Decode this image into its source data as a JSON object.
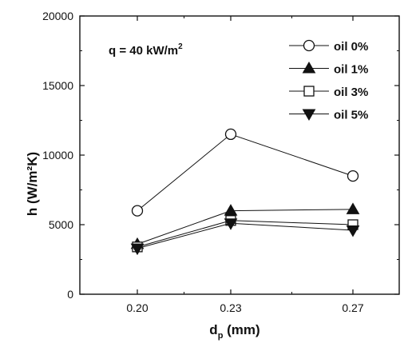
{
  "chart_data": {
    "type": "line",
    "x": [
      "0.20",
      "0.23",
      "0.27"
    ],
    "xlabel": "d",
    "xlabel_sub": "p",
    "xlabel_units": " (mm)",
    "ylabel": "h (W/m²K)",
    "ylim": [
      0,
      20000
    ],
    "yticks": [
      0,
      5000,
      10000,
      15000,
      20000
    ],
    "annotation": "q = 40 kW/m²",
    "legend_position": "top-right",
    "grid": false,
    "series": [
      {
        "name": "oil 0%",
        "marker": "circle-open",
        "values": [
          6000,
          11500,
          8500
        ]
      },
      {
        "name": "oil 1%",
        "marker": "triangle-up-filled",
        "values": [
          3600,
          6000,
          6100
        ]
      },
      {
        "name": "oil 3%",
        "marker": "square-open",
        "values": [
          3400,
          5300,
          5000
        ]
      },
      {
        "name": "oil 5%",
        "marker": "triangle-down-filled",
        "values": [
          3300,
          5100,
          4600
        ]
      }
    ]
  }
}
